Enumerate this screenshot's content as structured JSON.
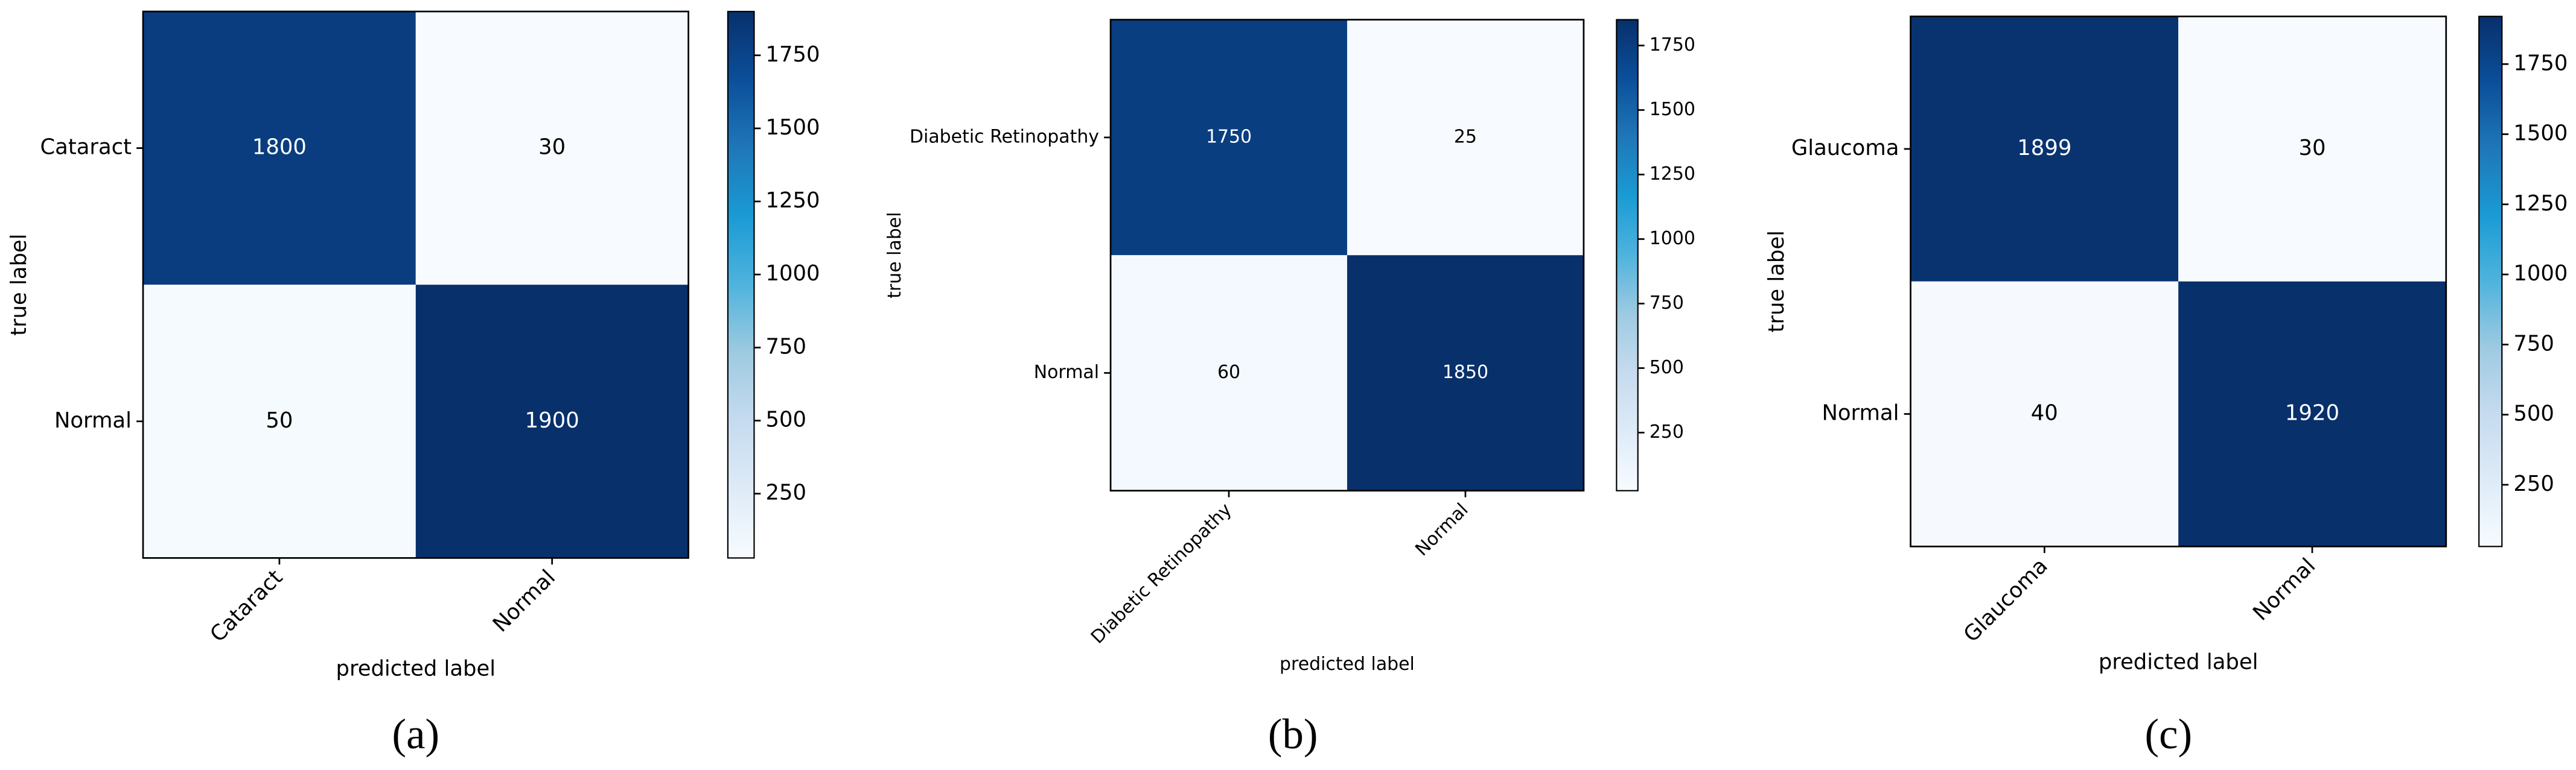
{
  "chart_data": [
    {
      "type": "heatmap",
      "caption": "(a)",
      "x_label": "predicted label",
      "y_label": "true label",
      "x_categories": [
        "Cataract",
        "Normal"
      ],
      "y_categories": [
        "Cataract",
        "Normal"
      ],
      "values": [
        [
          1800,
          30
        ],
        [
          50,
          1900
        ]
      ],
      "colormap": "Blues",
      "clim": [
        30,
        1900
      ],
      "cticks": [
        250,
        500,
        750,
        1000,
        1250,
        1500,
        1750
      ]
    },
    {
      "type": "heatmap",
      "caption": "(b)",
      "x_label": "predicted label",
      "y_label": "true label",
      "x_categories": [
        "Diabetic Retinopathy",
        "Normal"
      ],
      "y_categories": [
        "Diabetic Retinopathy",
        "Normal"
      ],
      "values": [
        [
          1750,
          25
        ],
        [
          60,
          1850
        ]
      ],
      "colormap": "Blues",
      "clim": [
        25,
        1850
      ],
      "cticks": [
        250,
        500,
        750,
        1000,
        1250,
        1500,
        1750
      ]
    },
    {
      "type": "heatmap",
      "caption": "(c)",
      "x_label": "predicted label",
      "y_label": "true label",
      "x_categories": [
        "Glaucoma",
        "Normal"
      ],
      "y_categories": [
        "Glaucoma",
        "Normal"
      ],
      "values": [
        [
          1899,
          30
        ],
        [
          40,
          1920
        ]
      ],
      "colormap": "Blues",
      "clim": [
        30,
        1920
      ],
      "cticks": [
        250,
        500,
        750,
        1000,
        1250,
        1500,
        1750
      ]
    }
  ]
}
